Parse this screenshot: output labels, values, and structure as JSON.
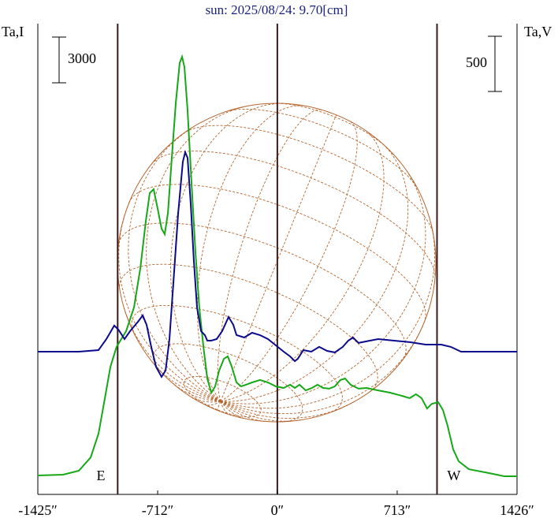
{
  "chart_data": {
    "type": "line",
    "title": "sun: 2025/08/24: 9.70[cm]",
    "ylabel": "Ta,I",
    "y2label": "Ta,V",
    "xlim": [
      -1425,
      1426
    ],
    "xticks": [
      {
        "value": -1425,
        "label": "-1425″"
      },
      {
        "value": -712,
        "label": "-712″"
      },
      {
        "value": 0,
        "label": "0″"
      },
      {
        "value": 713,
        "label": "713″"
      },
      {
        "value": 1426,
        "label": "1426″"
      }
    ],
    "ylim": [
      -1240,
      29620
    ],
    "y2lim": [
      -1293,
      2971
    ],
    "y_scale_bar": 3000,
    "y2_scale_bar": 500,
    "vlines": [
      -950,
      0,
      950
    ],
    "annotations": [
      {
        "text": "E",
        "x": -1050
      },
      {
        "text": "W",
        "x": 1050
      }
    ],
    "series": [
      {
        "color": "#16a816",
        "axis": "y",
        "x": [
          -1425,
          -1275,
          -1181,
          -1111,
          -1064,
          -1026,
          -993,
          -956,
          -900,
          -853,
          -815,
          -782,
          -759,
          -736,
          -712,
          -689,
          -670,
          -651,
          -628,
          -604,
          -581,
          -567,
          -553,
          -534,
          -511,
          -487,
          -464,
          -440,
          -417,
          -393,
          -370,
          -346,
          -318,
          -295,
          -271,
          -243,
          -215,
          -187,
          -150,
          -103,
          -56,
          -9,
          38,
          76,
          104,
          132,
          169,
          206,
          239,
          272,
          309,
          342,
          375,
          403,
          436,
          483,
          530,
          600,
          671,
          741,
          788,
          825,
          858,
          891,
          919,
          957,
          985,
          1013,
          1046,
          1079,
          1140,
          1257,
          1351,
          1426
        ],
        "values": [
          0,
          52,
          310,
          1180,
          2740,
          5070,
          7130,
          8440,
          9460,
          11010,
          13600,
          16700,
          18510,
          18770,
          17480,
          16180,
          15820,
          17220,
          20840,
          24450,
          27040,
          27450,
          26780,
          23940,
          19280,
          14630,
          11010,
          8440,
          6360,
          5430,
          5840,
          6880,
          7650,
          7810,
          7130,
          6100,
          5840,
          5950,
          6100,
          6260,
          6100,
          5840,
          5740,
          5950,
          5740,
          5950,
          5580,
          5740,
          5950,
          5740,
          5690,
          5840,
          6260,
          6360,
          5950,
          5690,
          5740,
          5580,
          5430,
          5220,
          5070,
          5330,
          5070,
          4390,
          4700,
          4810,
          4290,
          3260,
          1710,
          930,
          410,
          160,
          -50,
          -50
        ]
      },
      {
        "color": "#0a0a8c",
        "axis": "y2",
        "x": [
          -1425,
          -1181,
          -1064,
          -1017,
          -970,
          -946,
          -909,
          -876,
          -829,
          -801,
          -778,
          -750,
          -722,
          -689,
          -665,
          -642,
          -619,
          -590,
          -562,
          -548,
          -534,
          -515,
          -497,
          -478,
          -454,
          -431,
          -417,
          -393,
          -361,
          -328,
          -290,
          -262,
          -243,
          -197,
          -150,
          -103,
          -56,
          -9,
          38,
          76,
          104,
          122,
          155,
          202,
          249,
          296,
          342,
          389,
          422,
          450,
          483,
          530,
          600,
          694,
          788,
          882,
          975,
          1032,
          1093,
          1426
        ],
        "values": [
          0,
          0,
          14,
          114,
          236,
          200,
          114,
          186,
          271,
          328,
          243,
          43,
          -136,
          -228,
          -171,
          114,
          614,
          1257,
          1721,
          1806,
          1756,
          1328,
          828,
          400,
          186,
          150,
          100,
          100,
          114,
          186,
          314,
          243,
          150,
          128,
          171,
          150,
          114,
          57,
          0,
          -43,
          -86,
          -64,
          14,
          0,
          43,
          7,
          -7,
          43,
          100,
          128,
          79,
          93,
          114,
          100,
          86,
          64,
          64,
          43,
          0,
          0
        ]
      }
    ]
  }
}
